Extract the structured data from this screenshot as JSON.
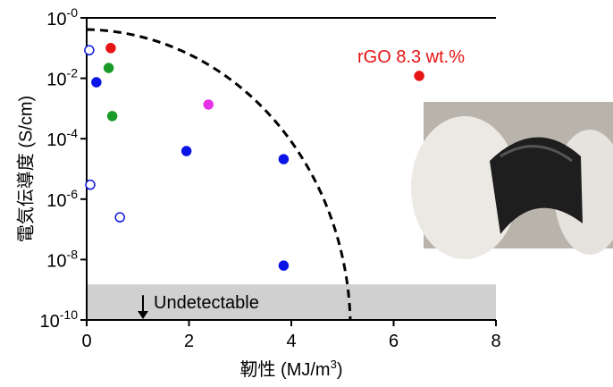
{
  "chart_data": {
    "type": "scatter",
    "ylabel": "電気伝導度 (S/cm)",
    "xlabel": {
      "text": "靭性 (MJ/m",
      "superscript": "3",
      "suffix": ")"
    },
    "xlim": [
      0,
      8
    ],
    "xticks": [
      0,
      2,
      4,
      6,
      8
    ],
    "ylim": [
      1e-10,
      1
    ],
    "log_y": true,
    "yticks": [
      {
        "value": 1,
        "base": "10",
        "exponent": "-0"
      },
      {
        "value": 0.01,
        "base": "10",
        "exponent": "-2"
      },
      {
        "value": 0.0001,
        "base": "10",
        "exponent": "-4"
      },
      {
        "value": 1e-06,
        "base": "10",
        "exponent": "-6"
      },
      {
        "value": 1e-08,
        "base": "10",
        "exponent": "-8"
      },
      {
        "value": 1e-10,
        "base": "10",
        "exponent": "-10"
      }
    ],
    "series": [
      {
        "color": "#0a14e6",
        "filled": true,
        "x": [
          0.19,
          1.95,
          3.85,
          3.85
        ],
        "values": [
          0.0074,
          3.9e-05,
          2.1e-05,
          6.3e-09
        ]
      },
      {
        "color": "#0a14e6",
        "filled": false,
        "x": [
          0.05,
          0.07,
          0.65
        ],
        "values": [
          0.085,
          3e-06,
          2.5e-07
        ]
      },
      {
        "color": "#e61414",
        "filled": true,
        "x": [
          0.47,
          6.5
        ],
        "values": [
          0.1,
          0.012
        ]
      },
      {
        "color": "#1a9a2a",
        "filled": true,
        "x": [
          0.43,
          0.5
        ],
        "values": [
          0.022,
          0.00056
        ]
      },
      {
        "color": "#e632e6",
        "filled": true,
        "x": [
          2.38
        ],
        "values": [
          0.00135
        ]
      }
    ],
    "annotation": {
      "text": "rGO 8.3 wt.%",
      "color": "#e61414"
    },
    "undetectable_region": {
      "label": "Undetectable",
      "ylim": [
        1e-10,
        1.5e-09
      ],
      "color": "#d0d0d0"
    }
  }
}
